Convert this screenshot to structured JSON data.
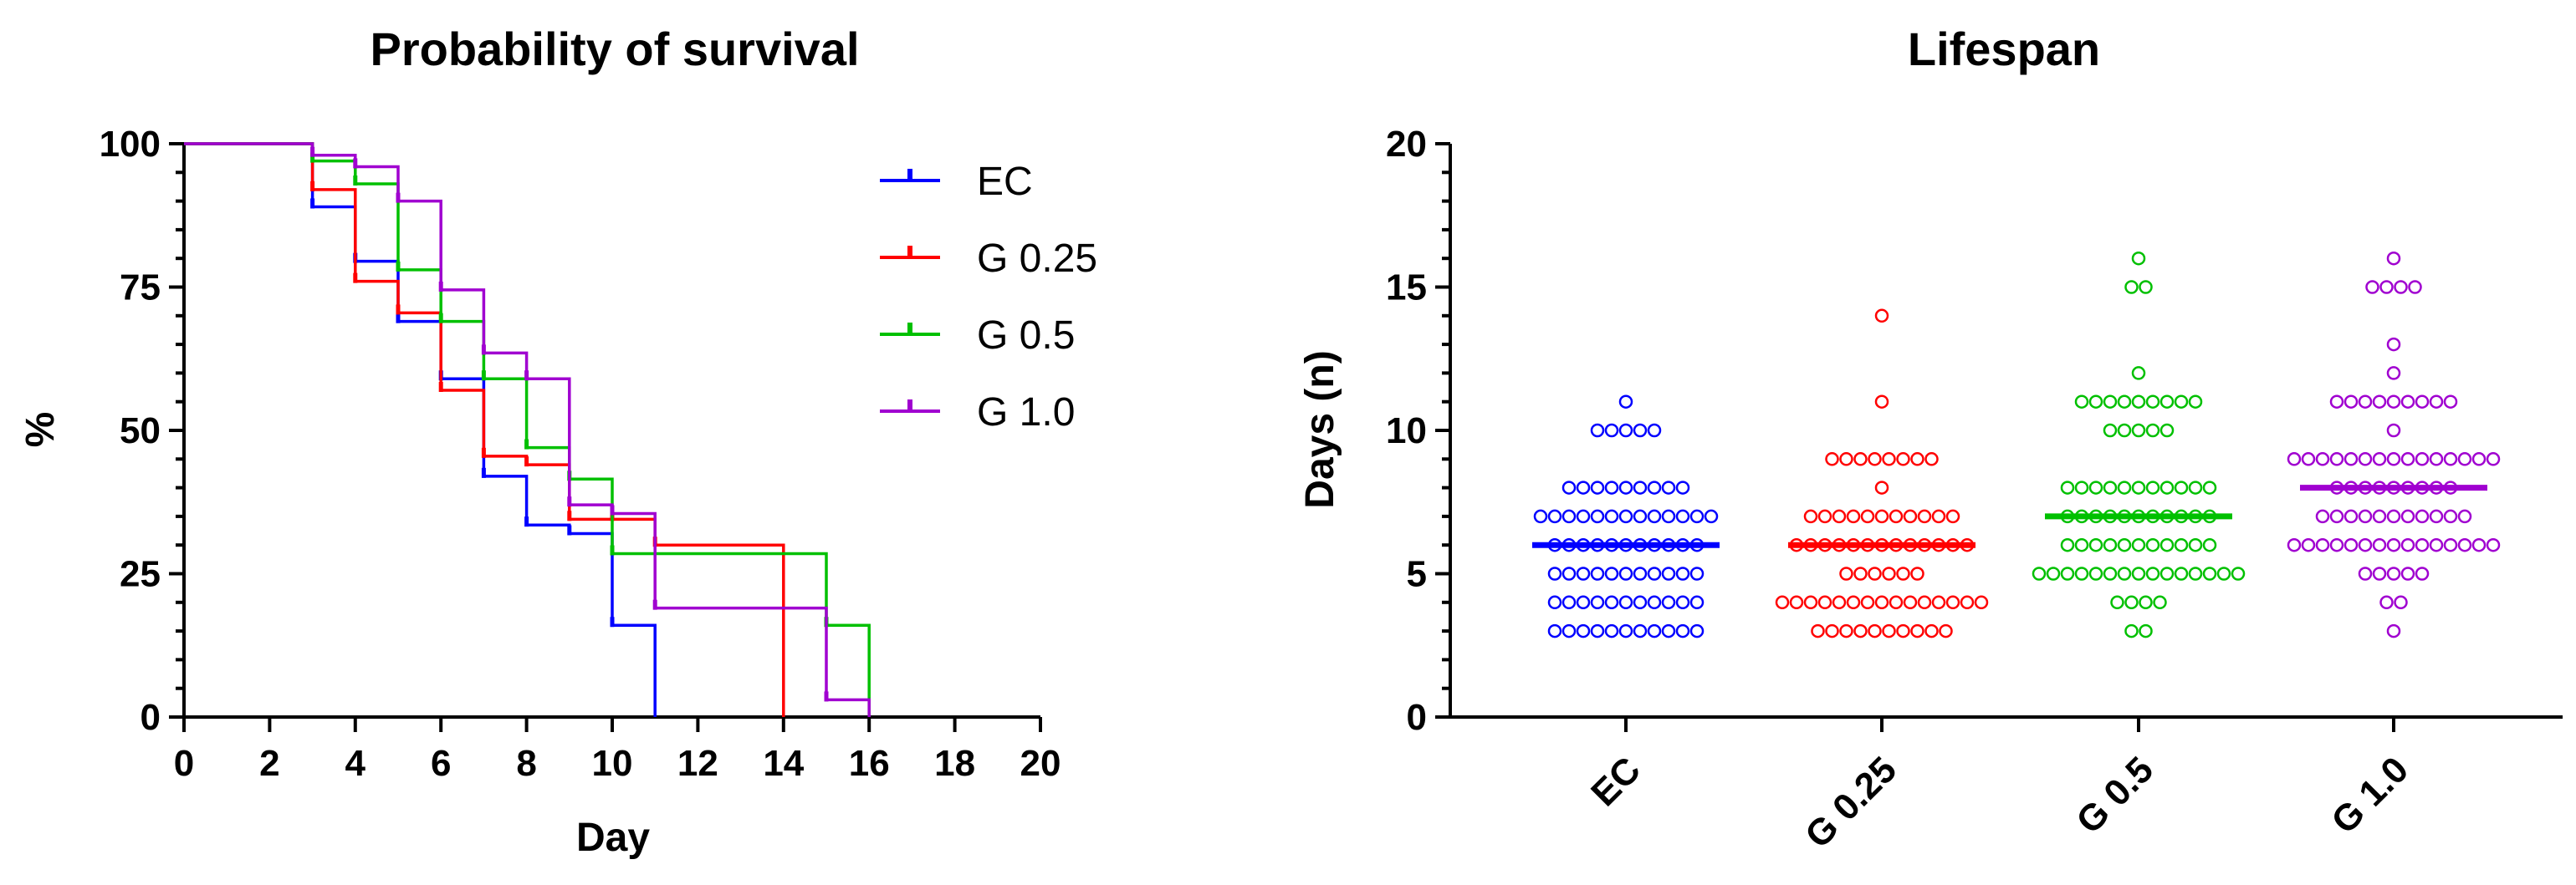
{
  "chart_data": [
    {
      "type": "line",
      "subtype": "kaplan-meier-step",
      "title": "Probability of survival",
      "xlabel": "Day",
      "ylabel": "%",
      "xlim": [
        0,
        20
      ],
      "ylim": [
        0,
        100
      ],
      "xticks": [
        0,
        2,
        4,
        6,
        8,
        10,
        12,
        14,
        16,
        18,
        20
      ],
      "yticks": [
        0,
        25,
        50,
        75,
        100
      ],
      "legend_position": "top-right",
      "series": [
        {
          "name": "EC",
          "color": "#0000ff",
          "steps": [
            [
              0,
              100
            ],
            [
              3,
              89
            ],
            [
              4,
              79.5
            ],
            [
              5,
              69
            ],
            [
              6,
              59
            ],
            [
              7,
              42
            ],
            [
              8,
              33.5
            ],
            [
              9,
              32
            ],
            [
              10,
              16
            ],
            [
              11,
              0
            ]
          ]
        },
        {
          "name": "G 0.25",
          "color": "#ff0000",
          "steps": [
            [
              0,
              100
            ],
            [
              3,
              92
            ],
            [
              4,
              76
            ],
            [
              5,
              70.5
            ],
            [
              6,
              57
            ],
            [
              7,
              45.5
            ],
            [
              8,
              44
            ],
            [
              9,
              34.5
            ],
            [
              10,
              34.5
            ],
            [
              11,
              30
            ],
            [
              14,
              0
            ]
          ]
        },
        {
          "name": "G 0.5",
          "color": "#00c000",
          "steps": [
            [
              0,
              100
            ],
            [
              3,
              97
            ],
            [
              4,
              93
            ],
            [
              5,
              78
            ],
            [
              6,
              69
            ],
            [
              7,
              59
            ],
            [
              8,
              47
            ],
            [
              9,
              41.5
            ],
            [
              10,
              28.5
            ],
            [
              15,
              16
            ],
            [
              16,
              0
            ]
          ]
        },
        {
          "name": "G 1.0",
          "color": "#a000d0",
          "steps": [
            [
              0,
              100
            ],
            [
              3,
              98
            ],
            [
              4,
              96
            ],
            [
              5,
              90
            ],
            [
              6,
              74.5
            ],
            [
              7,
              63.5
            ],
            [
              8,
              59
            ],
            [
              9,
              37
            ],
            [
              10,
              35.5
            ],
            [
              11,
              19
            ],
            [
              15,
              3
            ],
            [
              16,
              0
            ]
          ]
        }
      ]
    },
    {
      "type": "scatter",
      "subtype": "dot-plot-with-median",
      "title": "Lifespan",
      "xlabel": "",
      "ylabel": "Days (n)",
      "ylim": [
        0,
        20
      ],
      "yticks": [
        0,
        5,
        10,
        15,
        20
      ],
      "categories": [
        "EC",
        "G 0.25",
        "G 0.5",
        "G 1.0"
      ],
      "series": [
        {
          "name": "EC",
          "color": "#0000ff",
          "median": 6,
          "counts": {
            "3": 11,
            "4": 11,
            "5": 11,
            "6": 11,
            "7": 13,
            "8": 9,
            "10": 5,
            "11": 1
          }
        },
        {
          "name": "G 0.25",
          "color": "#ff0000",
          "median": 6,
          "counts": {
            "3": 10,
            "4": 15,
            "5": 6,
            "6": 13,
            "7": 11,
            "8": 1,
            "9": 8,
            "11": 1,
            "14": 1
          }
        },
        {
          "name": "G 0.5",
          "color": "#00c000",
          "median": 7,
          "counts": {
            "3": 2,
            "4": 4,
            "5": 15,
            "6": 11,
            "7": 11,
            "8": 11,
            "10": 5,
            "11": 9,
            "12": 1,
            "15": 2,
            "16": 1
          }
        },
        {
          "name": "G 1.0",
          "color": "#a000d0",
          "median": 8,
          "counts": {
            "3": 1,
            "4": 2,
            "5": 5,
            "6": 15,
            "7": 11,
            "8": 9,
            "9": 15,
            "10": 1,
            "11": 9,
            "12": 1,
            "13": 1,
            "15": 4,
            "16": 1
          }
        }
      ]
    }
  ]
}
